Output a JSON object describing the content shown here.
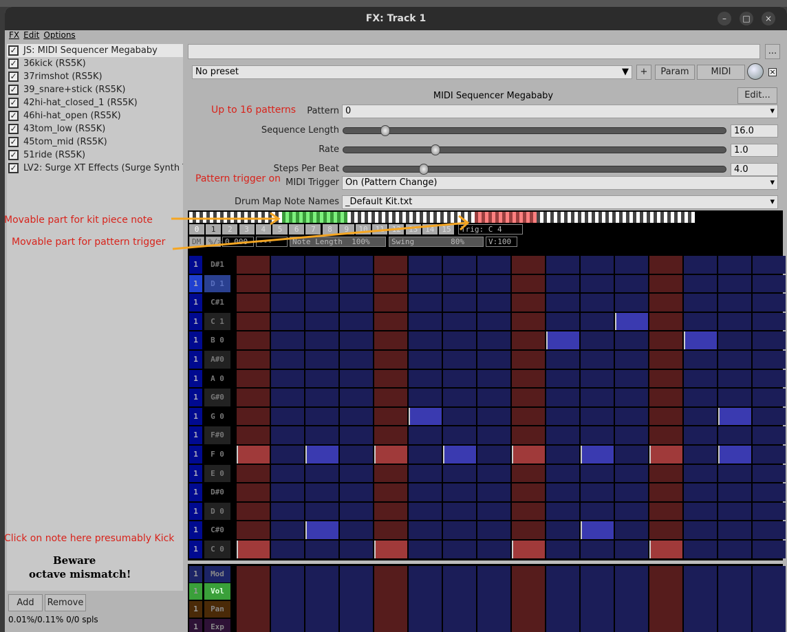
{
  "window": {
    "title": "FX: Track 1",
    "minimize": "–",
    "maximize": "□",
    "close": "×"
  },
  "menu": [
    "FX",
    "Edit",
    "Options"
  ],
  "fx_list": [
    {
      "label": "JS: MIDI Sequencer Megababy",
      "checked": true,
      "selected": true
    },
    {
      "label": "36kick (RS5K)",
      "checked": true
    },
    {
      "label": "37rimshot (RS5K)",
      "checked": true
    },
    {
      "label": "39_snare+stick (RS5K)",
      "checked": true
    },
    {
      "label": "42hi-hat_closed_1 (RS5K)",
      "checked": true
    },
    {
      "label": "46hi-hat_open (RS5K)",
      "checked": true
    },
    {
      "label": "43tom_low (RS5K)",
      "checked": true
    },
    {
      "label": "45tom_mid (RS5K)",
      "checked": true
    },
    {
      "label": "51ride (RS5K)",
      "checked": true
    },
    {
      "label": "LV2: Surge XT Effects (Surge Synth Te",
      "checked": true
    }
  ],
  "annotations": {
    "patterns": "Up to 16 patterns",
    "trigger_on": "Pattern trigger on",
    "kit_note": "Movable part for kit piece note",
    "pattern_trigger": "Movable part for pattern trigger",
    "click_note": "Click on note here presumably Kick",
    "beware1": "Beware",
    "beware2": "octave mismatch!"
  },
  "bottom": {
    "add": "Add",
    "remove": "Remove",
    "status": "0.01%/0.11% 0/0 spls"
  },
  "plugin": {
    "name_field": "",
    "more": "...",
    "preset": "No preset",
    "plus": "+",
    "param": "Param",
    "midi": "MIDI",
    "bypass": "×",
    "title": "MIDI Sequencer Megababy",
    "edit": "Edit...",
    "pattern_label": "Pattern",
    "pattern_value": "0",
    "sliders": [
      {
        "label": "Sequence Length",
        "value": "16.0",
        "fraction": 0.11
      },
      {
        "label": "Rate",
        "value": "1.0",
        "fraction": 0.24
      },
      {
        "label": "Steps Per Beat",
        "value": "4.0",
        "fraction": 0.21
      }
    ],
    "midi_trigger_label": "MIDI Trigger",
    "midi_trigger_value": "On (Pattern Change)",
    "drum_map_label": "Drum Map Note Names",
    "drum_map_value": "_Default Kit.txt"
  },
  "sequencer": {
    "pattern_buttons": [
      "0",
      "1",
      "2",
      "3",
      "4",
      "5",
      "6",
      "7",
      "8",
      "9",
      "10",
      "11",
      "12",
      "13",
      "14",
      "15"
    ],
    "active_pattern": 0,
    "trig": "Trig: C 4",
    "toolbar": [
      "DM",
      "%/>",
      "0.000",
      "---",
      "Note Length  100%",
      "Swing        80%",
      "V:100"
    ],
    "rows": [
      "D#1",
      "D 1",
      "C#1",
      "C 1",
      "B 0",
      "A#0",
      "A 0",
      "G#0",
      "G 0",
      "F#0",
      "F 0",
      "E 0",
      "D#0",
      "D 0",
      "C#0",
      "C 0"
    ],
    "channel": "1",
    "selected_row": 1,
    "notes": {
      "3": [
        11
      ],
      "4": [
        9,
        13
      ],
      "8": [
        5,
        14
      ],
      "10": [
        0,
        2,
        4,
        6,
        8,
        10,
        12,
        14
      ],
      "14": [
        2,
        10
      ],
      "15": [
        0,
        4,
        8,
        12
      ]
    },
    "beat_columns": [
      0,
      4,
      8,
      12
    ],
    "cc_lanes": [
      {
        "label": "Mod",
        "color": "#1c2466"
      },
      {
        "label": "Vol",
        "color": "#3aa03a"
      },
      {
        "label": "Pan",
        "color": "#4a2a08"
      },
      {
        "label": "Exp",
        "color": "#2e1236"
      }
    ],
    "colors": {
      "beat": "#561c1c",
      "off": "#1b1d58",
      "on": "#3a3ab0",
      "beat_on": "#a03a3a",
      "kit_range": "#7ef07e",
      "trig_range": "#ff8080"
    }
  }
}
